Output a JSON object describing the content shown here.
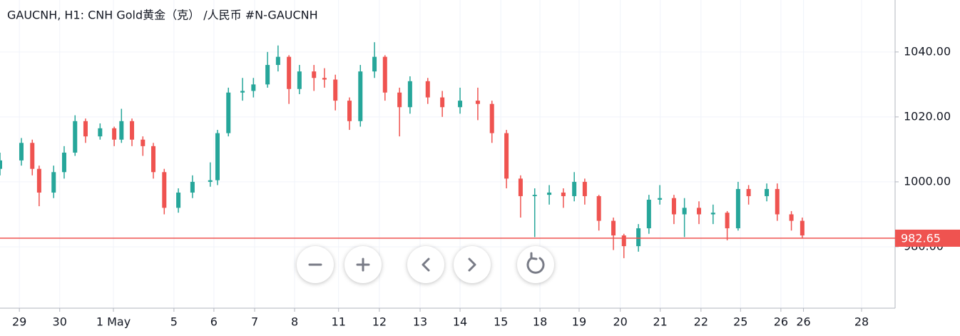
{
  "chart_data": {
    "type": "candlestick",
    "title": "GAUCNH, H1: CNH Gold黄金（克） /人民币 #N-GAUCNH",
    "x": [
      -0.48,
      0.05,
      0.32,
      0.49,
      0.85,
      1.11,
      1.38,
      1.64,
      2.0,
      2.35,
      2.53,
      2.79,
      3.06,
      3.32,
      3.59,
      3.94,
      4.29,
      4.73,
      4.91,
      5.18,
      5.53,
      5.8,
      6.15,
      6.41,
      6.68,
      6.94,
      7.3,
      7.56,
      7.83,
      8.18,
      8.45,
      8.8,
      9.06,
      9.42,
      9.68,
      10.12,
      10.48,
      10.92,
      11.36,
      11.71,
      12.07,
      12.42,
      12.77,
      13.13,
      13.48,
      13.75,
      14.01,
      14.36,
      14.72,
      14.98,
      15.34,
      15.6,
      15.87,
      16.22,
      16.48,
      16.84,
      17.19,
      17.54,
      17.81,
      18.07,
      18.52,
      18.78,
      19.13,
      19.4
    ],
    "open": [
      1004,
      1006.6,
      1012,
      1004,
      996.7,
      1003,
      1009,
      1018.7,
      1014,
      1016.5,
      1013,
      1018.7,
      1013,
      1011,
      1003,
      992,
      996.7,
      1000,
      1000.5,
      1015,
      1027.5,
      1028,
      1030,
      1036,
      1038.5,
      1028.6,
      1034,
      1032,
      1031.5,
      1025,
      1018.7,
      1034,
      1038.5,
      1027.5,
      1023,
      1031,
      1026,
      1023,
      1025,
      1024,
      1015,
      1001,
      995.6,
      996,
      996.7,
      995.6,
      1000,
      995.6,
      988,
      983.5,
      980.2,
      985.7,
      994.5,
      995,
      990,
      992,
      990,
      990.5,
      985.7,
      997.8,
      995.6,
      997.8,
      990,
      988
    ],
    "close": [
      1006.6,
      1012,
      1004,
      996.7,
      1003,
      1009,
      1018.7,
      1014,
      1016.5,
      1013,
      1018.7,
      1013,
      1011,
      1003,
      992,
      996.7,
      1000,
      1000.5,
      1015,
      1027.5,
      1028,
      1030,
      1036,
      1038.5,
      1028.6,
      1034,
      1032,
      1031.5,
      1025,
      1018.7,
      1034,
      1038.5,
      1027.5,
      1023,
      1031,
      1026,
      1023,
      1025,
      1024,
      1015,
      1001,
      995.6,
      996,
      996.7,
      995.6,
      1000,
      995.6,
      988,
      983.5,
      980.2,
      985.7,
      994.5,
      995,
      990,
      992,
      990,
      990.5,
      985.7,
      997.8,
      995.6,
      997.8,
      990,
      988,
      983.5
    ],
    "high": [
      1009,
      1013.5,
      1013,
      1005,
      1005,
      1011,
      1020.5,
      1019.5,
      1018,
      1017,
      1022.5,
      1019.5,
      1014,
      1012,
      1004,
      998,
      1002,
      1006,
      1016,
      1029,
      1032,
      1032,
      1040,
      1042,
      1039,
      1036,
      1036,
      1035,
      1033,
      1026,
      1036,
      1043,
      1039,
      1029,
      1032.5,
      1032,
      1028,
      1029,
      1029,
      1025,
      1016,
      1002,
      998,
      999,
      998,
      1003,
      1001,
      996,
      989,
      984,
      987,
      996,
      999,
      996,
      995,
      994,
      993,
      991,
      1000,
      999,
      999.5,
      999.5,
      991,
      989
    ],
    "low": [
      1002,
      1005,
      1002,
      992.5,
      995,
      1001,
      1008,
      1012,
      1013,
      1011,
      1012,
      1011,
      1008,
      1001,
      990,
      990.5,
      995,
      998.5,
      999,
      1014,
      1025,
      1026,
      1029,
      1034,
      1024,
      1027,
      1028,
      1029,
      1022,
      1016,
      1017,
      1032,
      1025,
      1014,
      1021,
      1024,
      1020,
      1021,
      1019,
      1012,
      998,
      989,
      983,
      993,
      992,
      994,
      993,
      985,
      979,
      976.5,
      978.5,
      984,
      993,
      987,
      983,
      987,
      987,
      982,
      985,
      993,
      994,
      988,
      985,
      982.5
    ],
    "up_color": "#26a69a",
    "down_color": "#ef5350",
    "xlim": [
      -0.48,
      21.7
    ],
    "xticks": [
      {
        "value": 0,
        "label": "29"
      },
      {
        "value": 1,
        "label": "30"
      },
      {
        "value": 2.33,
        "label": "1 May"
      },
      {
        "value": 3.83,
        "label": "5"
      },
      {
        "value": 4.82,
        "label": "6"
      },
      {
        "value": 5.83,
        "label": "7"
      },
      {
        "value": 6.82,
        "label": "8"
      },
      {
        "value": 7.91,
        "label": "11"
      },
      {
        "value": 8.92,
        "label": "12"
      },
      {
        "value": 9.93,
        "label": "13"
      },
      {
        "value": 10.92,
        "label": "14"
      },
      {
        "value": 11.93,
        "label": "15"
      },
      {
        "value": 12.9,
        "label": "18"
      },
      {
        "value": 13.87,
        "label": "19"
      },
      {
        "value": 14.89,
        "label": "20"
      },
      {
        "value": 15.88,
        "label": "21"
      },
      {
        "value": 16.89,
        "label": "22"
      },
      {
        "value": 17.87,
        "label": "25"
      },
      {
        "value": 18.87,
        "label": "26"
      },
      {
        "value": 19.43,
        "label": "26"
      },
      {
        "value": 20.87,
        "label": "28"
      }
    ],
    "ylim": [
      961.1,
      1056
    ],
    "yticks": [
      {
        "value": 980,
        "label": "980.00"
      },
      {
        "value": 1000,
        "label": "1000.00"
      },
      {
        "value": 1020,
        "label": "1020.00"
      },
      {
        "value": 1040,
        "label": "1040.00"
      }
    ],
    "last_price": 982.65,
    "last_price_color": "#ef5350",
    "grid": true
  }
}
